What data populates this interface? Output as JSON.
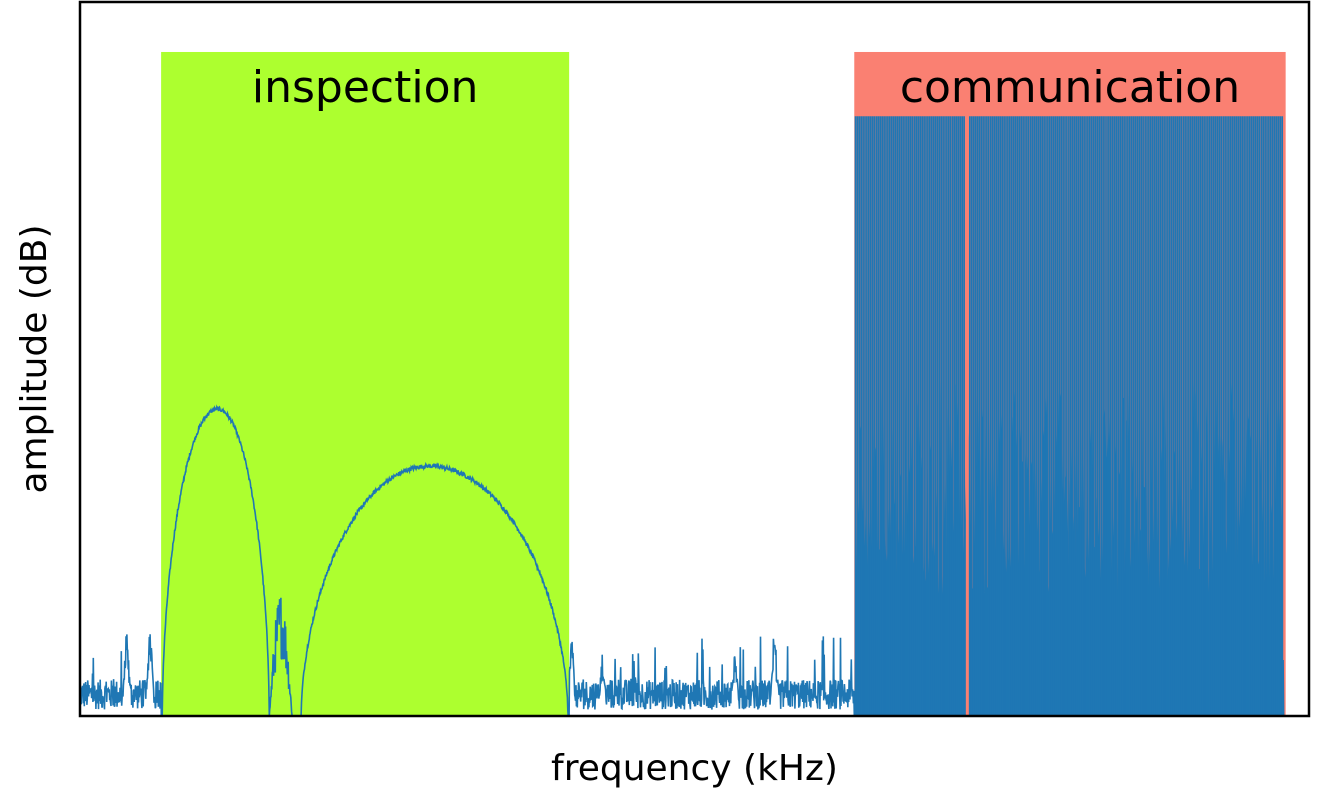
{
  "chart_data": {
    "type": "area",
    "title": "",
    "xlabel": "frequency (kHz)",
    "ylabel": "amplitude (dB)",
    "xlim": [
      0,
      1000
    ],
    "ylim": [
      0,
      100
    ],
    "xticks_shown": false,
    "yticks_shown": false,
    "grid": false,
    "line_color": "#1f77b4",
    "bands": [
      {
        "label": "inspection",
        "x_start": 66,
        "x_end": 398,
        "top": 93,
        "color": "#adff2f"
      },
      {
        "label": "communication",
        "x_start": 630,
        "x_end": 981,
        "top": 93,
        "color": "#fa8072"
      }
    ],
    "signal_features": [
      {
        "kind": "noise_floor",
        "x_range": [
          0,
          66
        ],
        "level": 3,
        "peaks": [
          [
            38,
            13
          ],
          [
            57,
            14
          ]
        ]
      },
      {
        "kind": "lobe",
        "x_range": [
          67,
          154
        ],
        "peak_x": 112,
        "peak_y": 43
      },
      {
        "kind": "notch_region",
        "x_range": [
          154,
          180
        ],
        "peak_x": 161,
        "peak_y": 16
      },
      {
        "kind": "lobe",
        "x_range": [
          180,
          397
        ],
        "peak_x": 284,
        "peak_y": 35
      },
      {
        "kind": "noise_floor",
        "x_range": [
          398,
          630
        ],
        "level": 3,
        "peaks": [
          [
            400,
            12
          ],
          [
            425,
            9
          ],
          [
            565,
            14
          ],
          [
            533,
            10
          ]
        ]
      },
      {
        "kind": "dense_carriers",
        "x_range": [
          631,
          979
        ],
        "peak_level": 84,
        "body_level": 32,
        "gap_x": 722
      }
    ]
  }
}
